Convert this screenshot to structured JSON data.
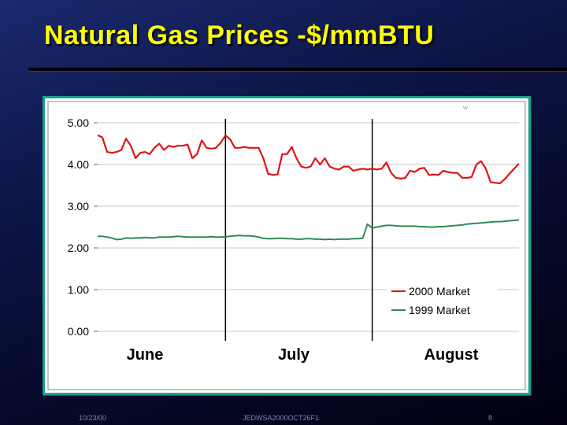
{
  "slide": {
    "title": "Natural Gas Prices -$/mmBTU",
    "footer_date": "10/23/00",
    "footer_code": "JEDWSA2000OCT26F1",
    "page_number": "8",
    "stray_mark": "w"
  },
  "colors": {
    "title": "#ffff00",
    "frame": "#18a08a",
    "series_2000": "#e01414",
    "series_1999": "#2e8b57"
  },
  "chart_data": {
    "type": "line",
    "title": "",
    "xlabel": "",
    "ylabel": "",
    "ylim": [
      0,
      5
    ],
    "yticks": [
      "0.00",
      "1.00",
      "2.00",
      "3.00",
      "4.00",
      "5.00"
    ],
    "months": [
      "June",
      "July",
      "August"
    ],
    "grid": true,
    "legend_position": "bottom-right",
    "series": [
      {
        "name": "2000 Market",
        "values": [
          4.7,
          4.65,
          4.3,
          4.28,
          4.3,
          4.35,
          4.62,
          4.45,
          4.15,
          4.28,
          4.3,
          4.25,
          4.4,
          4.5,
          4.35,
          4.45,
          4.42,
          4.45,
          4.45,
          4.48,
          4.15,
          4.25,
          4.58,
          4.4,
          4.38,
          4.4,
          4.52,
          4.7,
          4.6,
          4.4,
          4.4,
          4.42,
          4.4,
          4.4,
          4.4,
          4.15,
          3.78,
          3.75,
          3.76,
          4.25,
          4.25,
          4.42,
          4.15,
          3.95,
          3.92,
          3.95,
          4.15,
          4.0,
          4.15,
          3.95,
          3.9,
          3.88,
          3.95,
          3.95,
          3.85,
          3.88,
          3.9,
          3.88,
          3.9,
          3.88,
          3.9,
          4.05,
          3.8,
          3.68,
          3.66,
          3.68,
          3.85,
          3.82,
          3.9,
          3.92,
          3.75,
          3.76,
          3.75,
          3.85,
          3.82,
          3.8,
          3.8,
          3.68,
          3.68,
          3.7,
          4.0,
          4.08,
          3.9,
          3.58,
          3.56,
          3.55,
          3.65,
          3.78,
          3.9,
          4.02
        ]
      },
      {
        "name": "1999 Market",
        "values": [
          2.28,
          2.28,
          2.26,
          2.24,
          2.2,
          2.21,
          2.24,
          2.23,
          2.24,
          2.24,
          2.25,
          2.24,
          2.24,
          2.26,
          2.26,
          2.26,
          2.27,
          2.28,
          2.27,
          2.26,
          2.26,
          2.26,
          2.26,
          2.26,
          2.27,
          2.26,
          2.26,
          2.27,
          2.28,
          2.29,
          2.3,
          2.29,
          2.29,
          2.28,
          2.26,
          2.23,
          2.22,
          2.22,
          2.23,
          2.23,
          2.22,
          2.22,
          2.21,
          2.21,
          2.22,
          2.22,
          2.21,
          2.21,
          2.2,
          2.21,
          2.2,
          2.21,
          2.21,
          2.21,
          2.22,
          2.22,
          2.23,
          2.57,
          2.48,
          2.5,
          2.52,
          2.54,
          2.54,
          2.53,
          2.52,
          2.52,
          2.52,
          2.52,
          2.51,
          2.51,
          2.5,
          2.5,
          2.51,
          2.51,
          2.52,
          2.53,
          2.54,
          2.55,
          2.57,
          2.58,
          2.59,
          2.6,
          2.61,
          2.62,
          2.63,
          2.63,
          2.64,
          2.65,
          2.66,
          2.67
        ]
      }
    ]
  }
}
